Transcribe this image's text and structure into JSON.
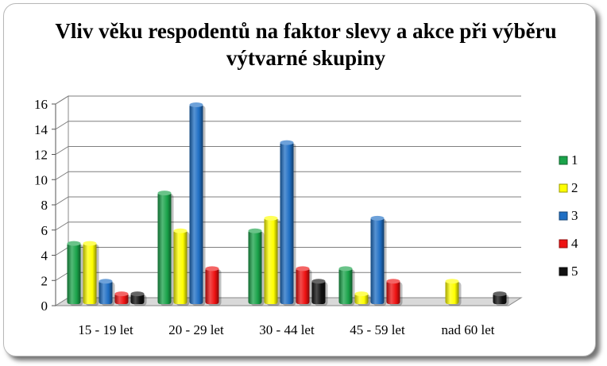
{
  "chart_data": {
    "type": "bar",
    "title": "Vliv věku respodentů na faktor slevy a akce při výběru výtvarné skupiny",
    "categories": [
      "15 - 19 let",
      "20 - 29 let",
      "30 - 44 let",
      "45 - 59 let",
      "nad 60 let"
    ],
    "series": [
      {
        "name": "1",
        "color": "#1aa34a",
        "values": [
          5,
          9,
          6,
          3,
          0
        ]
      },
      {
        "name": "2",
        "color": "#ffff00",
        "values": [
          5,
          6,
          7,
          1,
          2
        ]
      },
      {
        "name": "3",
        "color": "#1f6fc4",
        "values": [
          2,
          16,
          13,
          7,
          0
        ]
      },
      {
        "name": "4",
        "color": "#ee1111",
        "values": [
          1,
          3,
          3,
          2,
          0
        ]
      },
      {
        "name": "5",
        "color": "#111111",
        "values": [
          1,
          0,
          2,
          0,
          1
        ]
      }
    ],
    "ylim": [
      0,
      16
    ],
    "yticks": [
      0,
      2,
      4,
      6,
      8,
      10,
      12,
      14,
      16
    ],
    "grid": true,
    "legend_position": "right"
  }
}
